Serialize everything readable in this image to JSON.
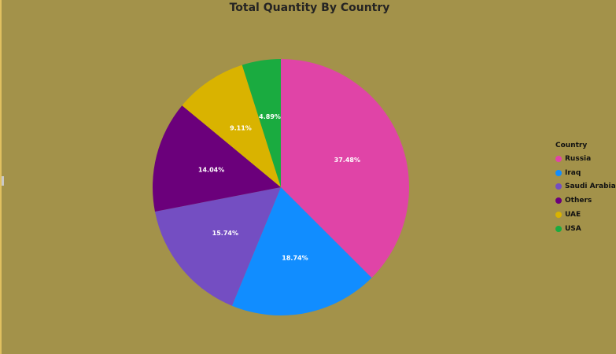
{
  "chart_data": {
    "type": "pie",
    "title": "Total Quantity By Country",
    "legend": {
      "title": "Country",
      "placement": "right"
    },
    "slices": [
      {
        "name": "Russia",
        "value": 37.48,
        "label": "37.48%",
        "color": "#e044a7"
      },
      {
        "name": "Iraq",
        "value": 18.74,
        "label": "18.74%",
        "color": "#118dff"
      },
      {
        "name": "Saudi Arabia",
        "value": 15.74,
        "label": "15.74%",
        "color": "#744ec2"
      },
      {
        "name": "Others",
        "value": 14.04,
        "label": "14.04%",
        "color": "#6b007b"
      },
      {
        "name": "UAE",
        "value": 9.11,
        "label": "9.11%",
        "color": "#d9b300"
      },
      {
        "name": "USA",
        "value": 4.89,
        "label": "4.89%",
        "color": "#1aab40"
      }
    ]
  }
}
